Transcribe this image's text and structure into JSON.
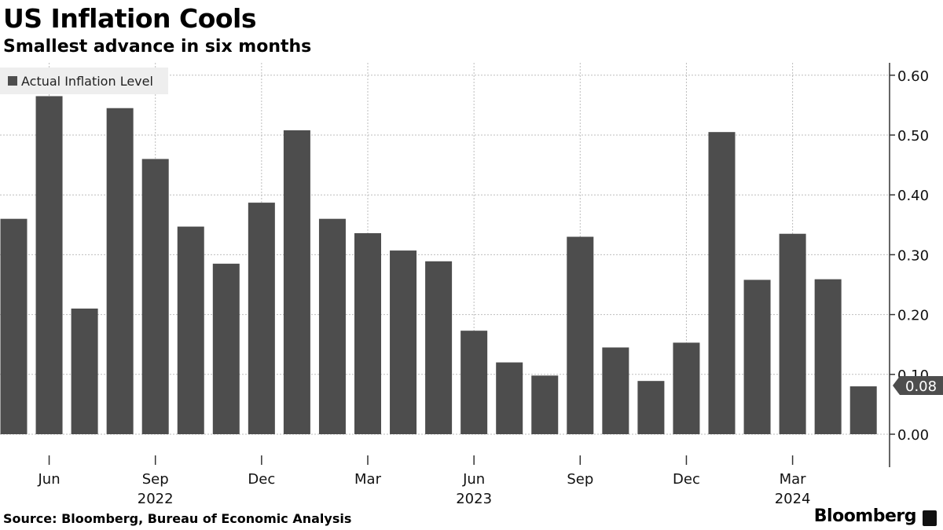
{
  "title": "US Inflation Cools",
  "subtitle": "Smallest advance in six months",
  "source": "Source: Bloomberg, Bureau of Economic Analysis",
  "brand": "Bloomberg",
  "colors": {
    "bar": "#4d4d4d",
    "grid": "#bdbdbd",
    "axis": "#333333",
    "legend_bg": "#eeeeee",
    "callout": "#4d4d4d"
  },
  "chart_data": {
    "type": "bar",
    "categories": [
      "2022-05",
      "2022-06",
      "2022-07",
      "2022-08",
      "2022-09",
      "2022-10",
      "2022-11",
      "2022-12",
      "2023-01",
      "2023-02",
      "2023-03",
      "2023-04",
      "2023-05",
      "2023-06",
      "2023-07",
      "2023-08",
      "2023-09",
      "2023-10",
      "2023-11",
      "2023-12",
      "2024-01",
      "2024-02",
      "2024-03",
      "2024-04",
      "2024-05"
    ],
    "series": [
      {
        "name": "Actual Inflation Level",
        "values": [
          0.36,
          0.565,
          0.21,
          0.545,
          0.46,
          0.347,
          0.285,
          0.387,
          0.508,
          0.36,
          0.336,
          0.307,
          0.289,
          0.173,
          0.12,
          0.098,
          0.33,
          0.145,
          0.089,
          0.153,
          0.505,
          0.258,
          0.335,
          0.259,
          0.08
        ]
      }
    ],
    "ylim": [
      -0.05,
      0.62
    ],
    "yticks": [
      0.0,
      0.1,
      0.2,
      0.3,
      0.4,
      0.5,
      0.6
    ],
    "ytick_labels": [
      "0.00",
      "0.10",
      "0.20",
      "0.30",
      "0.40",
      "0.50",
      "0.60"
    ],
    "xticks": [
      {
        "index": 1,
        "label": "Jun"
      },
      {
        "index": 4,
        "label": "Sep"
      },
      {
        "index": 7,
        "label": "Dec"
      },
      {
        "index": 10,
        "label": "Mar"
      },
      {
        "index": 13,
        "label": "Jun"
      },
      {
        "index": 16,
        "label": "Sep"
      },
      {
        "index": 19,
        "label": "Dec"
      },
      {
        "index": 22,
        "label": "Mar"
      }
    ],
    "year_labels": [
      {
        "index": 4,
        "label": "2022"
      },
      {
        "index": 13,
        "label": "2023"
      },
      {
        "index": 22,
        "label": "2024"
      }
    ],
    "last_value_label": "0.08",
    "grid": true,
    "yaxis_side": "right",
    "legend_position": "top-left"
  }
}
